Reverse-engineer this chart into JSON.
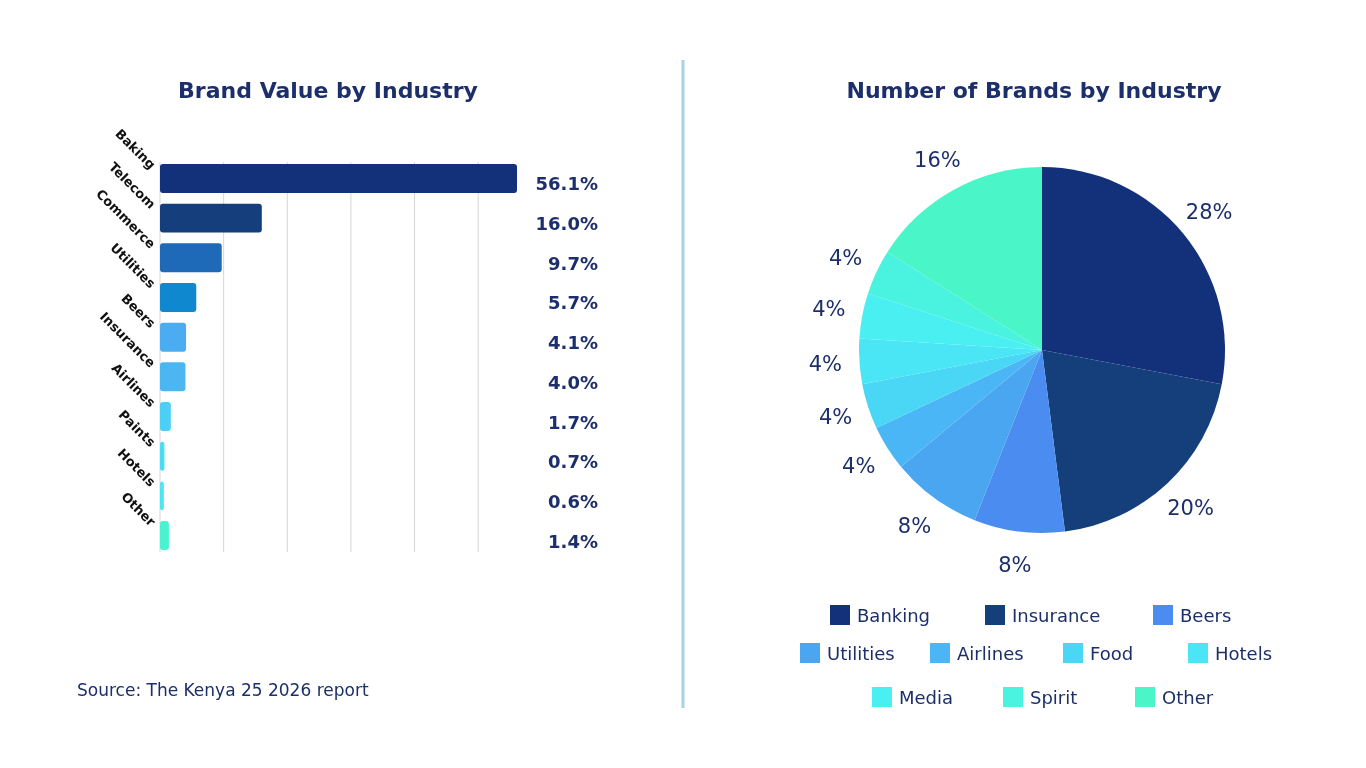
{
  "chart_data": [
    {
      "type": "bar",
      "title": "Brand Value by Industry",
      "orientation": "horizontal",
      "categories": [
        "Baking",
        "Telecom",
        "Commerce",
        "Utilities",
        "Beers",
        "Insurance",
        "Airlines",
        "Paints",
        "Hotels",
        "Other"
      ],
      "values": [
        56.1,
        16.0,
        9.7,
        5.7,
        4.1,
        4.0,
        1.7,
        0.7,
        0.6,
        1.4
      ],
      "value_labels": [
        "56.1%",
        "16.0%",
        "9.7%",
        "5.7%",
        "4.1%",
        "4.0%",
        "1.7%",
        "0.7%",
        "0.6%",
        "1.4%"
      ],
      "colors": [
        "#13307a",
        "#153f7c",
        "#1f6ab8",
        "#0f88cf",
        "#4bacf2",
        "#4bb6f2",
        "#4bcff5",
        "#4bddf5",
        "#4be6f2",
        "#4bf2d2"
      ],
      "xticks": [
        {
          "value": 0,
          "label": null
        },
        {
          "value": 10,
          "label": null
        },
        {
          "value": 20,
          "label": null
        },
        {
          "value": 30,
          "label": null
        },
        {
          "value": 40,
          "label": null
        },
        {
          "value": 50,
          "label": null
        }
      ],
      "grid": "x",
      "tick_labels": "y",
      "annotations": [
        "Source: The Kenya 25 2026 report"
      ]
    },
    {
      "type": "pie",
      "title": "Number of Brands by Industry",
      "categories": [
        "Banking",
        "Insurance",
        "Beers",
        "Utilities",
        "Airlines",
        "Food",
        "Hotels",
        "Media",
        "Spirit",
        "Other"
      ],
      "values": [
        28,
        20,
        8,
        8,
        4,
        4,
        4,
        4,
        4,
        16
      ],
      "value_labels": [
        "28%",
        "20%",
        "8%",
        "8%",
        "4%",
        "4%",
        "4%",
        "4%",
        "4%",
        "16%"
      ],
      "colors": [
        "#13307a",
        "#143f7a",
        "#4a8cf0",
        "#4aa6f0",
        "#4ab6f5",
        "#4ad6f5",
        "#4ae6f5",
        "#4aeff2",
        "#4af2e0",
        "#4af5c8"
      ],
      "legend": "bottom"
    }
  ]
}
